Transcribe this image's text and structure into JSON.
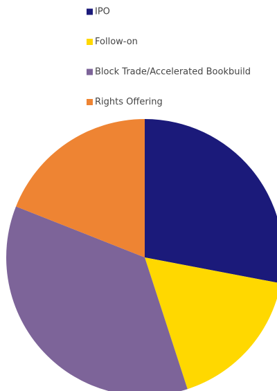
{
  "chart_data": {
    "type": "pie",
    "categories": [
      "IPO",
      "Follow-on",
      "Block Trade/Accelerated Bookbuild",
      "Rights Offering"
    ],
    "values": [
      28,
      17,
      36,
      19
    ],
    "colors": [
      "#1b1a7a",
      "#ffd800",
      "#7d6499",
      "#ee8433"
    ]
  }
}
